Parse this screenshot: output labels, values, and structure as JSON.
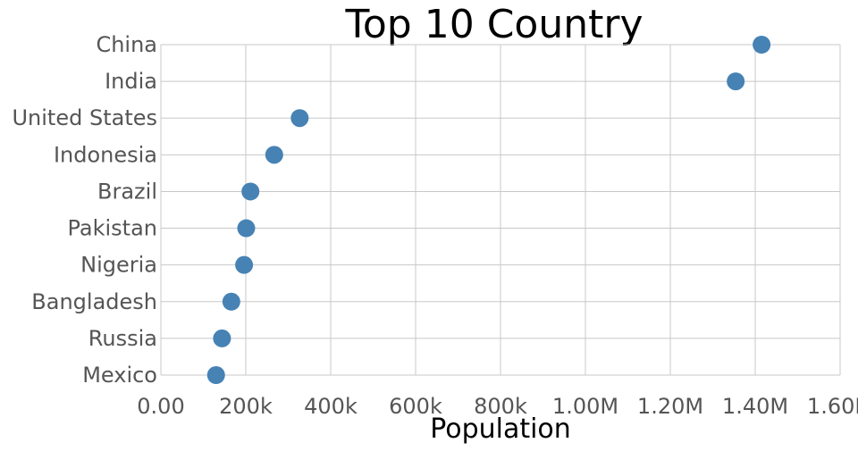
{
  "chart_data": {
    "type": "scatter",
    "title": "Top 10 Country",
    "xlabel": "Population",
    "ylabel": "",
    "xlim": [
      0,
      1600000
    ],
    "x_ticks": [
      0,
      200000,
      400000,
      600000,
      800000,
      1000000,
      1200000,
      1400000,
      1600000
    ],
    "x_tick_labels": [
      "0.00",
      "200k",
      "400k",
      "600k",
      "800k",
      "1.00M",
      "1.20M",
      "1.40M",
      "1.60M"
    ],
    "categories": [
      "China",
      "India",
      "United States",
      "Indonesia",
      "Brazil",
      "Pakistan",
      "Nigeria",
      "Bangladesh",
      "Russia",
      "Mexico"
    ],
    "values": [
      1415000,
      1354000,
      327000,
      267000,
      211000,
      201000,
      196000,
      166000,
      144000,
      130000
    ],
    "marker_color": "#4682b4",
    "grid": true,
    "legend": "none"
  }
}
